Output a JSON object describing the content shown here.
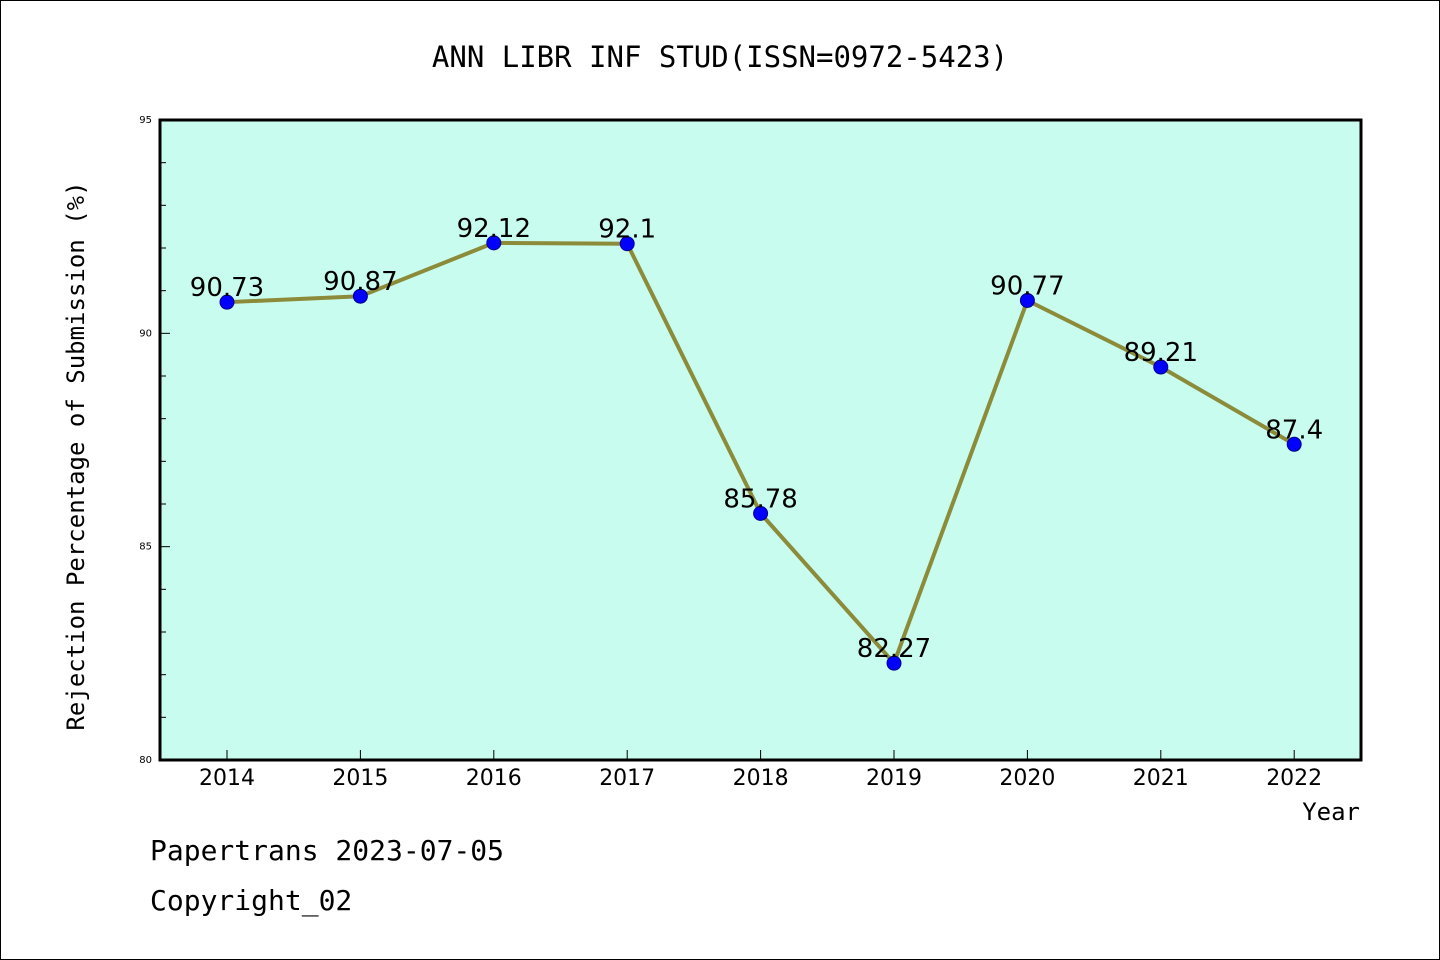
{
  "chart_data": {
    "type": "line",
    "title": "ANN LIBR INF STUD(ISSN=0972-5423)",
    "xlabel": "Year",
    "ylabel": "Rejection Percentage of Submission (%)",
    "categories": [
      "2014",
      "2015",
      "2016",
      "2017",
      "2018",
      "2019",
      "2020",
      "2021",
      "2022"
    ],
    "values": [
      90.73,
      90.87,
      92.12,
      92.1,
      85.78,
      82.27,
      90.77,
      89.21,
      87.4
    ],
    "data_labels": [
      "90.73",
      "90.87",
      "92.12",
      "92.1",
      "85.78",
      "82.27",
      "90.77",
      "89.21",
      "87.4"
    ],
    "ylim": [
      80,
      95
    ],
    "yticks": [
      80,
      85,
      90,
      95
    ],
    "ytick_labels": [
      "80",
      "85",
      "90",
      "95"
    ],
    "grid": false,
    "legend": "none",
    "colors": {
      "plot_background": "#c8fcee",
      "line": "#8b8b3a",
      "marker": "#0000ff"
    }
  },
  "footer": {
    "line1": "Papertrans 2023-07-05",
    "line2": "Copyright_02"
  }
}
